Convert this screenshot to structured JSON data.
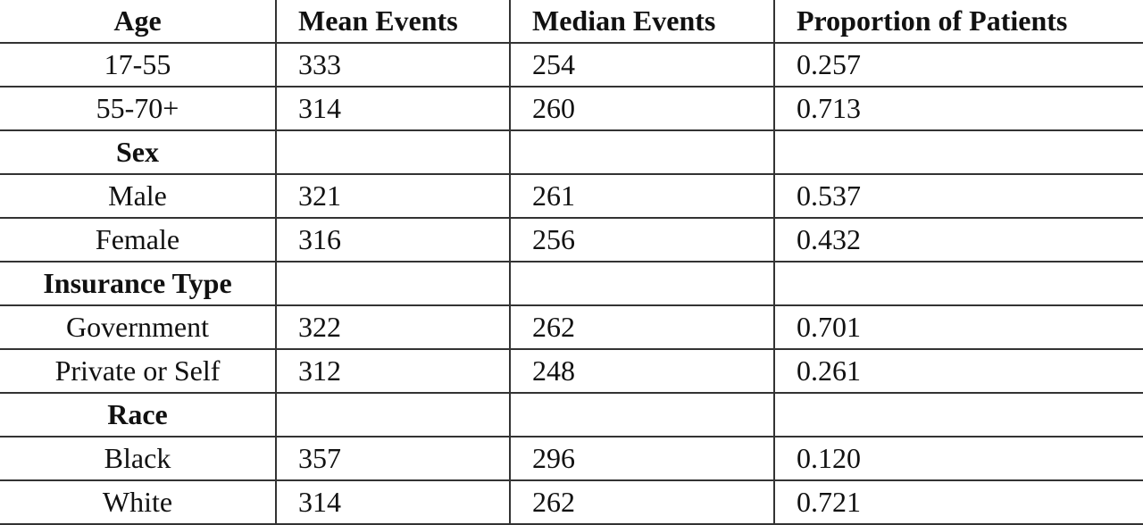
{
  "table": {
    "header": [
      "Age",
      "Mean Events",
      "Median Events",
      "Proportion of Patients"
    ],
    "rows": [
      {
        "label": "17-55",
        "cells": [
          "333",
          "254",
          "0.257"
        ]
      },
      {
        "label": "55-70+",
        "cells": [
          "314",
          "260",
          "0.713"
        ]
      },
      {
        "label": "Sex"
      },
      {
        "label": "Male",
        "cells": [
          "321",
          "261",
          "0.537"
        ]
      },
      {
        "label": "Female",
        "cells": [
          "316",
          "256",
          "0.432"
        ]
      },
      {
        "label": "Insurance Type"
      },
      {
        "label": "Government",
        "cells": [
          "322",
          "262",
          "0.701"
        ]
      },
      {
        "label": "Private or Self",
        "cells": [
          "312",
          "248",
          "0.261"
        ]
      },
      {
        "label": "Race"
      },
      {
        "label": "Black",
        "cells": [
          "357",
          "296",
          "0.120"
        ]
      },
      {
        "label": "White",
        "cells": [
          "314",
          "262",
          "0.721"
        ]
      }
    ]
  }
}
